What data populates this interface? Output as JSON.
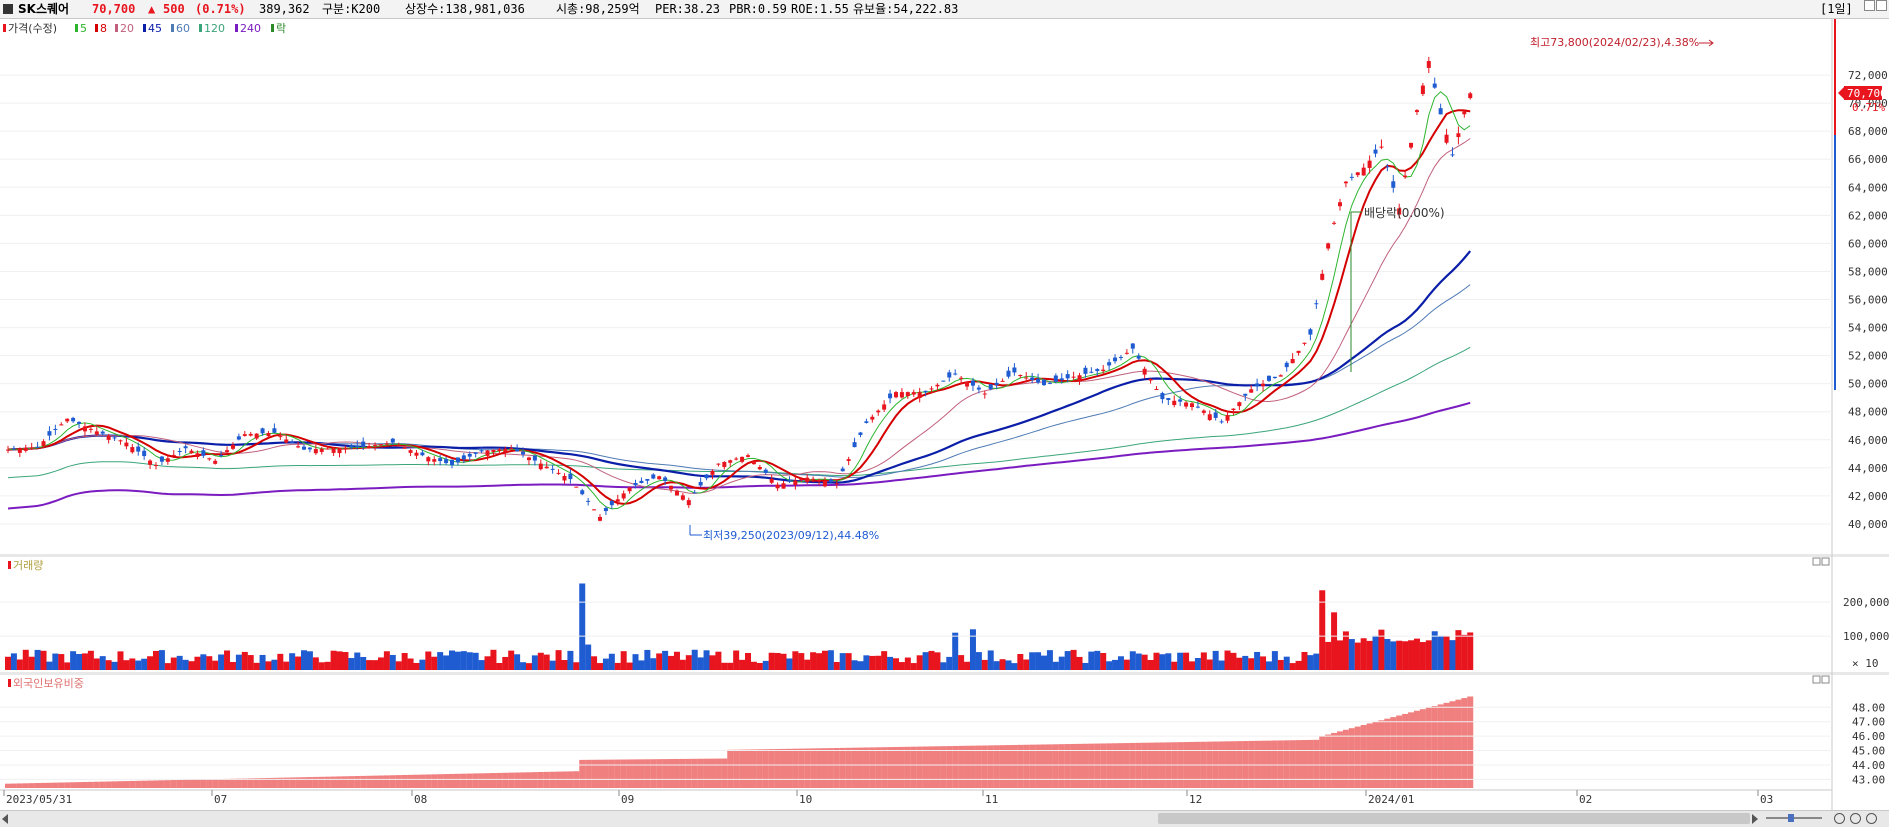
{
  "header": {
    "name": "SK스퀘어",
    "price": "70,700",
    "change_arrow": "▲",
    "change": "500",
    "change_pct": "(0.71%)",
    "volume": "389,362",
    "segment": "구분:K200",
    "shares": "상장수:138,981,036",
    "mktcap": "시총:98,259억",
    "per": "PER:38.23",
    "pbr": "PBR:0.59",
    "roe": "ROE:1.55",
    "float": "유보율:54,222.83",
    "period_button": "[1일]"
  },
  "colors": {
    "up": "#e8141e",
    "down": "#1f5bd1",
    "ma5": "#2cb52c",
    "ma8": "#d40000",
    "ma20": "#c0607c",
    "ma45": "#0a1ea8",
    "ma60": "#4f7bb5",
    "ma120": "#3aa57a",
    "ma240": "#7a1cc0",
    "foreign": "#f08080"
  },
  "legend": {
    "price_label": "가격(수정)",
    "ma_items": [
      {
        "text": "5",
        "color": "#2cb52c"
      },
      {
        "text": "8",
        "color": "#d40000"
      },
      {
        "text": "20",
        "color": "#c0607c"
      },
      {
        "text": "45",
        "color": "#0a1ea8"
      },
      {
        "text": "60",
        "color": "#4f7bb5"
      },
      {
        "text": "120",
        "color": "#3aa57a"
      },
      {
        "text": "240",
        "color": "#7a1cc0"
      },
      {
        "text": "락",
        "color": "#2a8a2a"
      }
    ],
    "volume_label": "거래량",
    "foreign_label": "외국인보유비중"
  },
  "annotations": {
    "high": "최고73,800(2024/02/23),4.38%",
    "low": "최저39,250(2023/09/12),44.48%",
    "dividend": "배당락(0.00%)",
    "last_price": "70,700",
    "last_pct": "0.71%",
    "volume_unit": "× 10"
  },
  "price_ticks": [
    "72,000",
    "70,000",
    "68,000",
    "66,000",
    "64,000",
    "62,000",
    "60,000",
    "58,000",
    "56,000",
    "54,000",
    "52,000",
    "50,000",
    "48,000",
    "46,000",
    "44,000",
    "42,000",
    "40,000"
  ],
  "volume_ticks": [
    "200,000",
    "100,000"
  ],
  "foreign_ticks": [
    "48.00",
    "47.00",
    "46.00",
    "45.00",
    "44.00",
    "43.00"
  ],
  "x_labels": [
    "2023/05/31",
    "07",
    "08",
    "09",
    "10",
    "11",
    "12",
    "2024/01",
    "02",
    "03"
  ],
  "chart_data": {
    "type": "candlestick",
    "ylim": [
      38500,
      74500
    ],
    "volume_ylim": [
      0,
      280000
    ],
    "foreign_ylim": [
      42.4,
      49.2
    ],
    "stats": {
      "high": 73800,
      "high_date": "2024/02/23",
      "low": 39250,
      "low_date": "2023/09/12"
    },
    "anchors": [
      [
        0,
        45300
      ],
      [
        5,
        45500
      ],
      [
        10,
        47500
      ],
      [
        15,
        46600
      ],
      [
        20,
        45800
      ],
      [
        25,
        44200
      ],
      [
        30,
        45400
      ],
      [
        35,
        44500
      ],
      [
        40,
        46400
      ],
      [
        45,
        46500
      ],
      [
        50,
        45300
      ],
      [
        55,
        45400
      ],
      [
        60,
        45500
      ],
      [
        65,
        45800
      ],
      [
        70,
        44900
      ],
      [
        75,
        44200
      ],
      [
        80,
        45200
      ],
      [
        85,
        45400
      ],
      [
        90,
        44300
      ],
      [
        95,
        43200
      ],
      [
        100,
        40500
      ],
      [
        105,
        42600
      ],
      [
        110,
        43400
      ],
      [
        115,
        41700
      ],
      [
        120,
        44300
      ],
      [
        125,
        44900
      ],
      [
        130,
        42800
      ],
      [
        135,
        43300
      ],
      [
        140,
        42900
      ],
      [
        145,
        47200
      ],
      [
        150,
        49400
      ],
      [
        155,
        49400
      ],
      [
        160,
        50700
      ],
      [
        165,
        49300
      ],
      [
        170,
        50800
      ],
      [
        175,
        49900
      ],
      [
        180,
        50500
      ],
      [
        185,
        51000
      ],
      [
        190,
        52500
      ],
      [
        195,
        48900
      ],
      [
        200,
        48600
      ],
      [
        205,
        47300
      ],
      [
        210,
        49600
      ],
      [
        215,
        50600
      ],
      [
        220,
        53500
      ],
      [
        223,
        60000
      ],
      [
        226,
        64400
      ],
      [
        229,
        65400
      ],
      [
        232,
        66900
      ],
      [
        235,
        62500
      ],
      [
        238,
        69500
      ],
      [
        240,
        73000
      ],
      [
        242,
        69200
      ],
      [
        244,
        66300
      ],
      [
        246,
        69400
      ],
      [
        247,
        70700
      ]
    ]
  }
}
